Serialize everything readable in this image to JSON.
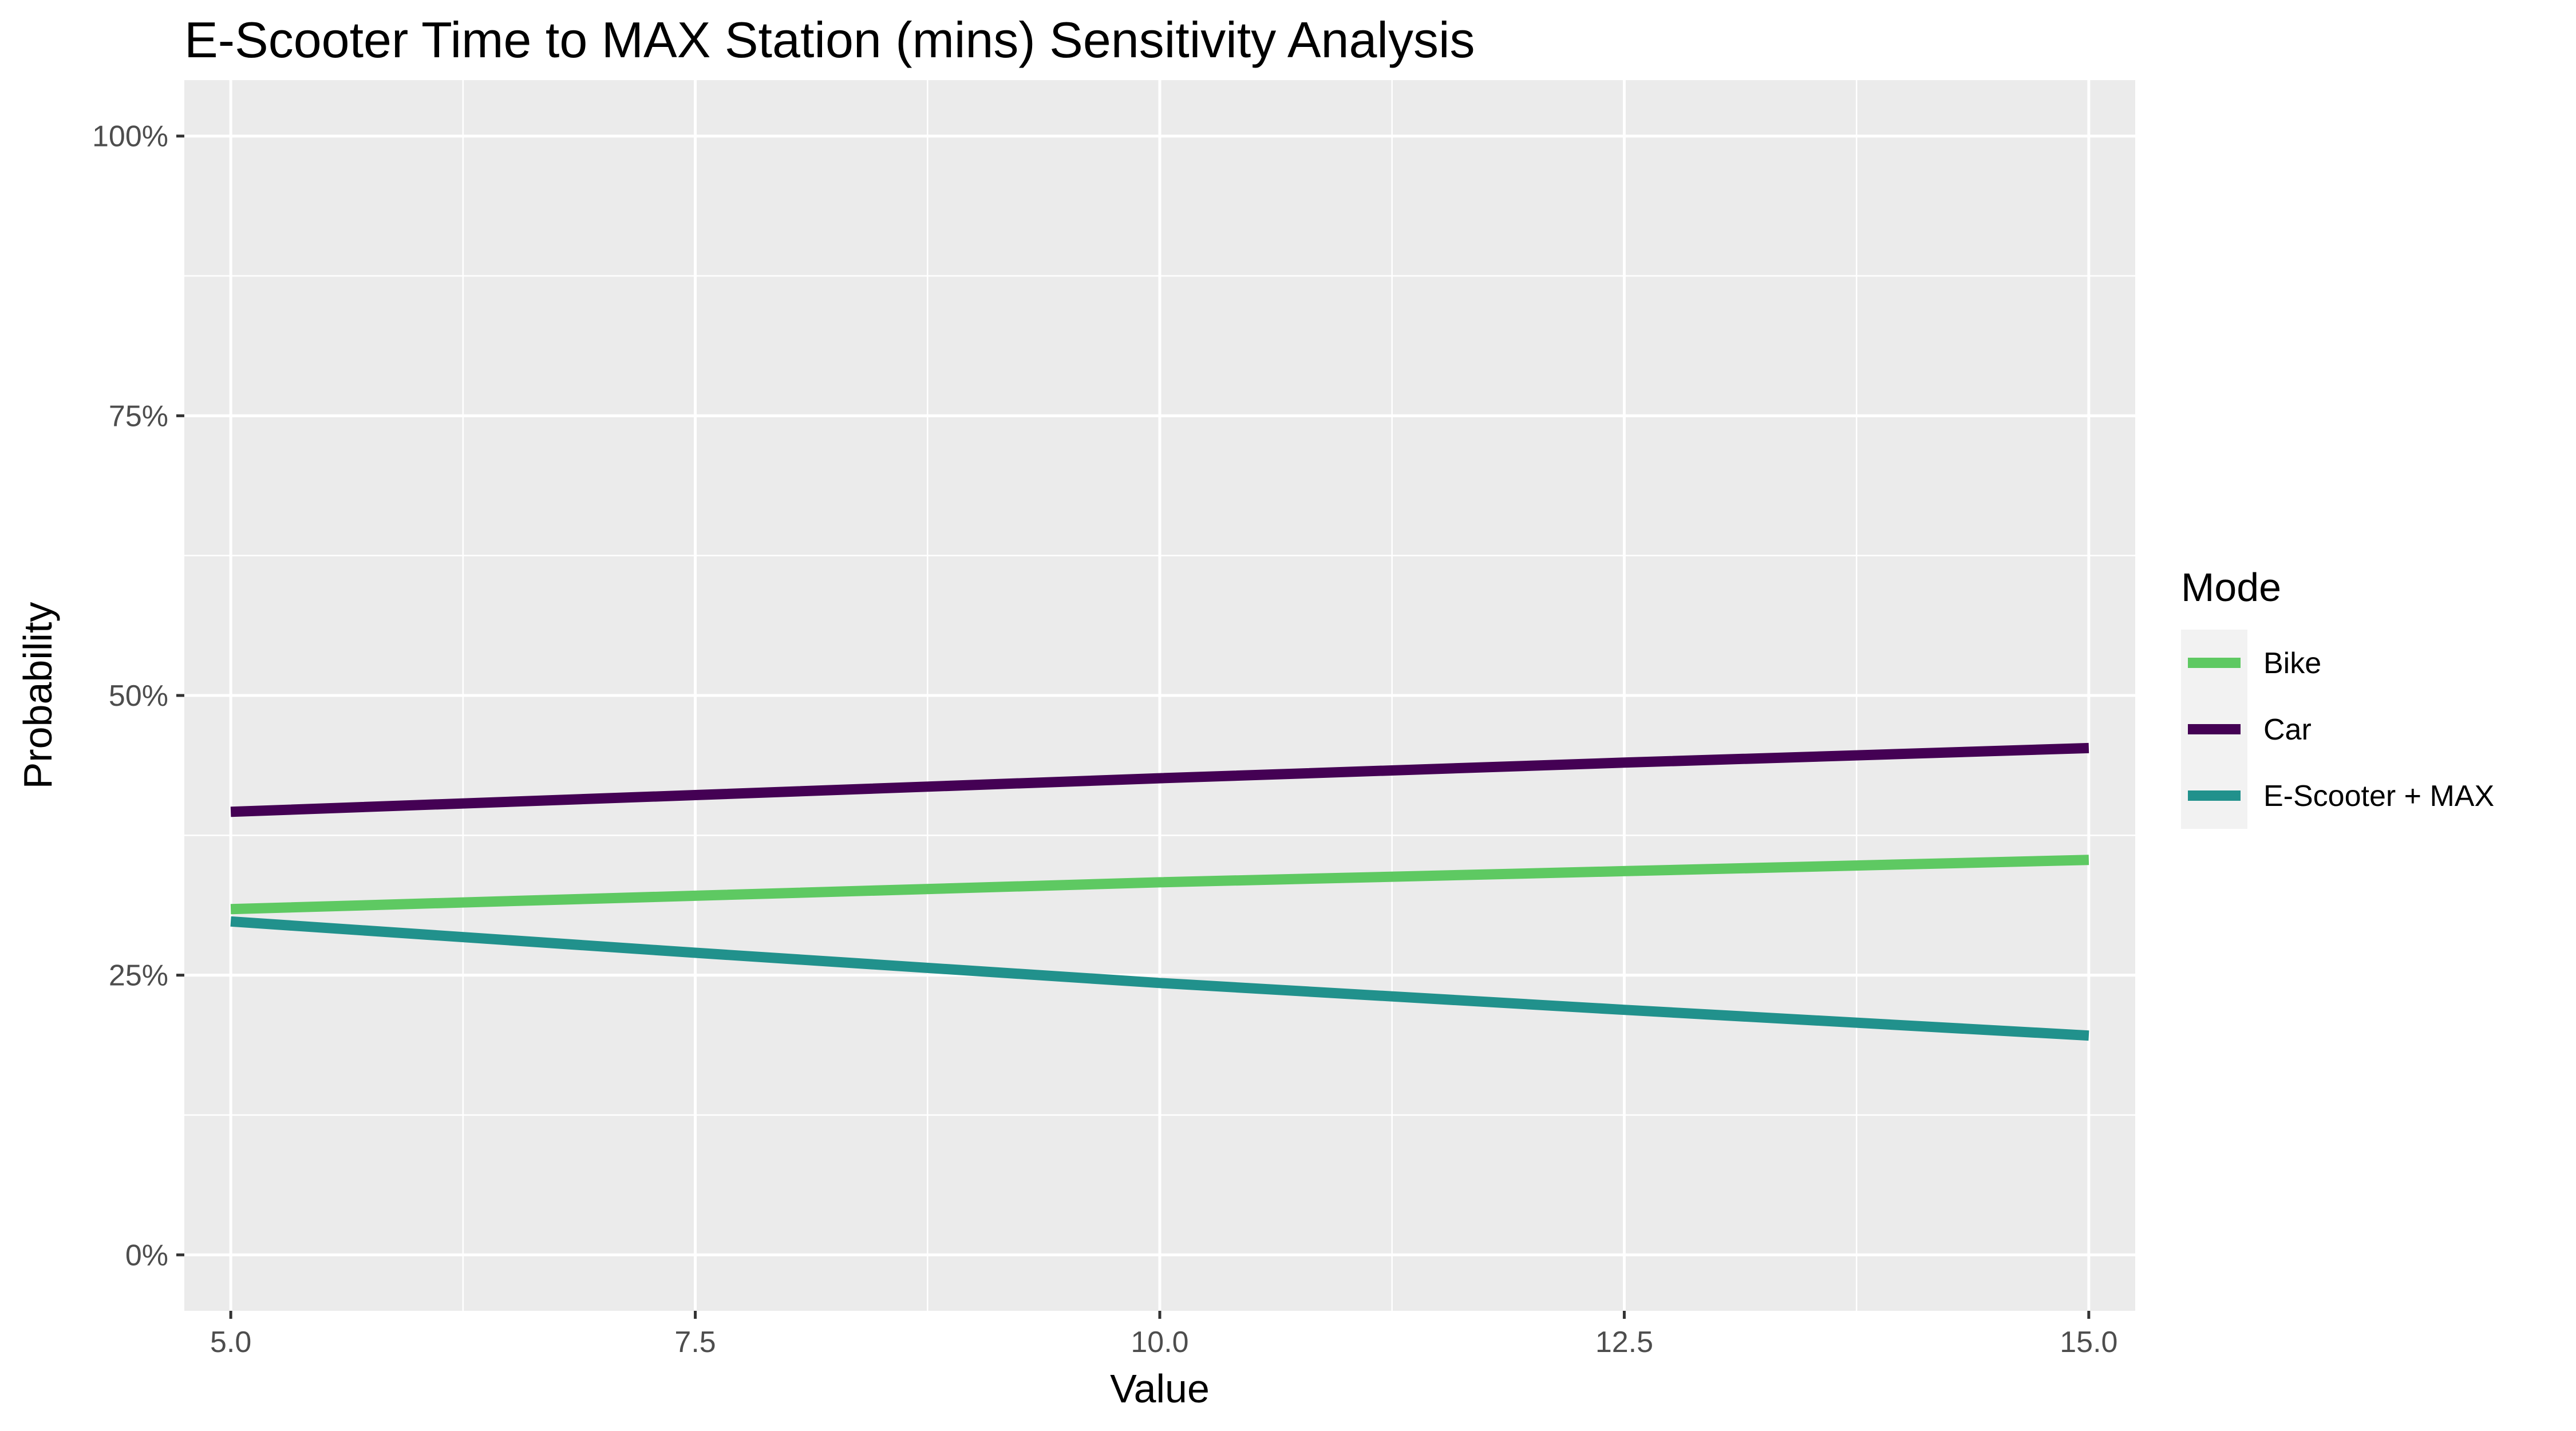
{
  "chart_data": {
    "type": "line",
    "title": "E-Scooter Time to MAX Station (mins) Sensitivity Analysis",
    "xlabel": "Value",
    "ylabel": "Probability",
    "xlim": [
      4.75,
      15.25
    ],
    "ylim": [
      -0.05,
      1.05
    ],
    "x_ticks": [
      5.0,
      7.5,
      10.0,
      12.5,
      15.0
    ],
    "x_tick_labels": [
      "5.0",
      "7.5",
      "10.0",
      "12.5",
      "15.0"
    ],
    "y_ticks": [
      0,
      0.25,
      0.5,
      0.75,
      1.0
    ],
    "y_tick_labels": [
      "0%",
      "25%",
      "50%",
      "75%",
      "100%"
    ],
    "grid": true,
    "legend": {
      "title": "Mode",
      "position": "right"
    },
    "x": [
      5.0,
      7.5,
      10.0,
      12.5,
      15.0
    ],
    "series": [
      {
        "name": "Bike",
        "color": "#5ec962",
        "values": [
          0.309,
          0.321,
          0.333,
          0.343,
          0.353
        ]
      },
      {
        "name": "Car",
        "color": "#440154",
        "values": [
          0.396,
          0.411,
          0.426,
          0.44,
          0.453
        ]
      },
      {
        "name": "E-Scooter + MAX",
        "color": "#21918c",
        "values": [
          0.298,
          0.27,
          0.243,
          0.219,
          0.196
        ]
      }
    ]
  }
}
